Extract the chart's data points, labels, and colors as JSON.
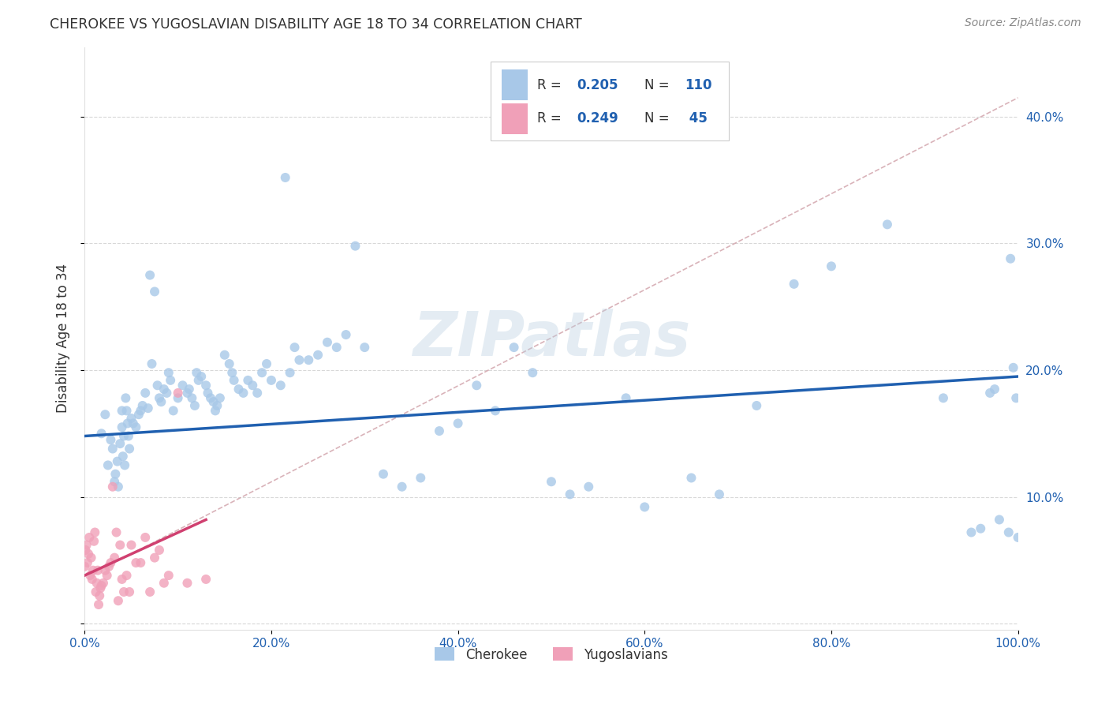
{
  "title": "CHEROKEE VS YUGOSLAVIAN DISABILITY AGE 18 TO 34 CORRELATION CHART",
  "source": "Source: ZipAtlas.com",
  "ylabel": "Disability Age 18 to 34",
  "legend_labels": [
    "Cherokee",
    "Yugoslavians"
  ],
  "watermark": "ZIPatlas",
  "blue_color": "#a8c8e8",
  "pink_color": "#f0a0b8",
  "blue_line_color": "#2060b0",
  "pink_line_color": "#d04070",
  "dashed_line_color": "#d0a0a8",
  "title_color": "#333333",
  "source_color": "#888888",
  "ylabel_color": "#333333",
  "legend_R_color": "#2060b0",
  "legend_N_color": "#2060b0",
  "tick_color": "#2060b0",
  "xlim": [
    0.0,
    1.0
  ],
  "ylim": [
    -0.005,
    0.455
  ],
  "xticks": [
    0.0,
    0.2,
    0.4,
    0.6,
    0.8,
    1.0
  ],
  "yticks": [
    0.0,
    0.1,
    0.2,
    0.3,
    0.4
  ],
  "xtick_labels": [
    "0.0%",
    "20.0%",
    "40.0%",
    "60.0%",
    "80.0%",
    "100.0%"
  ],
  "ytick_labels_right": [
    "",
    "10.0%",
    "20.0%",
    "30.0%",
    "40.0%"
  ],
  "cherokee_x": [
    0.018,
    0.022,
    0.025,
    0.028,
    0.03,
    0.032,
    0.033,
    0.035,
    0.036,
    0.038,
    0.04,
    0.04,
    0.041,
    0.042,
    0.043,
    0.044,
    0.045,
    0.046,
    0.047,
    0.048,
    0.05,
    0.052,
    0.055,
    0.058,
    0.06,
    0.062,
    0.065,
    0.068,
    0.07,
    0.072,
    0.075,
    0.078,
    0.08,
    0.082,
    0.085,
    0.088,
    0.09,
    0.092,
    0.095,
    0.1,
    0.105,
    0.11,
    0.112,
    0.115,
    0.118,
    0.12,
    0.122,
    0.125,
    0.13,
    0.132,
    0.135,
    0.138,
    0.14,
    0.142,
    0.145,
    0.15,
    0.155,
    0.158,
    0.16,
    0.165,
    0.17,
    0.175,
    0.18,
    0.185,
    0.19,
    0.195,
    0.2,
    0.21,
    0.215,
    0.22,
    0.225,
    0.23,
    0.24,
    0.25,
    0.26,
    0.27,
    0.28,
    0.29,
    0.3,
    0.32,
    0.34,
    0.36,
    0.38,
    0.4,
    0.42,
    0.44,
    0.46,
    0.48,
    0.5,
    0.52,
    0.54,
    0.58,
    0.6,
    0.65,
    0.68,
    0.72,
    0.76,
    0.8,
    0.86,
    0.92,
    0.95,
    0.96,
    0.97,
    0.975,
    0.98,
    0.99,
    0.992,
    0.995,
    0.998,
    1.0
  ],
  "cherokee_y": [
    0.15,
    0.165,
    0.125,
    0.145,
    0.138,
    0.112,
    0.118,
    0.128,
    0.108,
    0.142,
    0.155,
    0.168,
    0.132,
    0.148,
    0.125,
    0.178,
    0.168,
    0.158,
    0.148,
    0.138,
    0.162,
    0.158,
    0.155,
    0.165,
    0.168,
    0.172,
    0.182,
    0.17,
    0.275,
    0.205,
    0.262,
    0.188,
    0.178,
    0.175,
    0.185,
    0.182,
    0.198,
    0.192,
    0.168,
    0.178,
    0.188,
    0.182,
    0.185,
    0.178,
    0.172,
    0.198,
    0.192,
    0.195,
    0.188,
    0.182,
    0.178,
    0.175,
    0.168,
    0.172,
    0.178,
    0.212,
    0.205,
    0.198,
    0.192,
    0.185,
    0.182,
    0.192,
    0.188,
    0.182,
    0.198,
    0.205,
    0.192,
    0.188,
    0.352,
    0.198,
    0.218,
    0.208,
    0.208,
    0.212,
    0.222,
    0.218,
    0.228,
    0.298,
    0.218,
    0.118,
    0.108,
    0.115,
    0.152,
    0.158,
    0.188,
    0.168,
    0.218,
    0.198,
    0.112,
    0.102,
    0.108,
    0.178,
    0.092,
    0.115,
    0.102,
    0.172,
    0.268,
    0.282,
    0.315,
    0.178,
    0.072,
    0.075,
    0.182,
    0.185,
    0.082,
    0.072,
    0.288,
    0.202,
    0.178,
    0.068
  ],
  "yugo_x": [
    0.0,
    0.001,
    0.002,
    0.003,
    0.004,
    0.005,
    0.006,
    0.007,
    0.008,
    0.009,
    0.01,
    0.011,
    0.012,
    0.013,
    0.014,
    0.015,
    0.016,
    0.017,
    0.018,
    0.02,
    0.022,
    0.024,
    0.026,
    0.028,
    0.03,
    0.032,
    0.034,
    0.036,
    0.038,
    0.04,
    0.042,
    0.045,
    0.048,
    0.05,
    0.055,
    0.06,
    0.065,
    0.07,
    0.075,
    0.08,
    0.085,
    0.09,
    0.1,
    0.11,
    0.13
  ],
  "yugo_y": [
    0.045,
    0.058,
    0.062,
    0.048,
    0.055,
    0.068,
    0.038,
    0.052,
    0.035,
    0.042,
    0.065,
    0.072,
    0.025,
    0.032,
    0.042,
    0.015,
    0.022,
    0.028,
    0.03,
    0.032,
    0.042,
    0.038,
    0.045,
    0.048,
    0.108,
    0.052,
    0.072,
    0.018,
    0.062,
    0.035,
    0.025,
    0.038,
    0.025,
    0.062,
    0.048,
    0.048,
    0.068,
    0.025,
    0.052,
    0.058,
    0.032,
    0.038,
    0.182,
    0.032,
    0.035
  ],
  "cherokee_line_x": [
    0.0,
    1.0
  ],
  "cherokee_line_y": [
    0.148,
    0.195
  ],
  "yugo_line_x": [
    0.0,
    0.13
  ],
  "yugo_line_y": [
    0.038,
    0.082
  ],
  "diagonal_line_x": [
    0.05,
    1.0
  ],
  "diagonal_line_y": [
    0.055,
    0.415
  ],
  "background_color": "#ffffff",
  "grid_color": "#d8d8d8",
  "plot_area_bg": "#ffffff"
}
